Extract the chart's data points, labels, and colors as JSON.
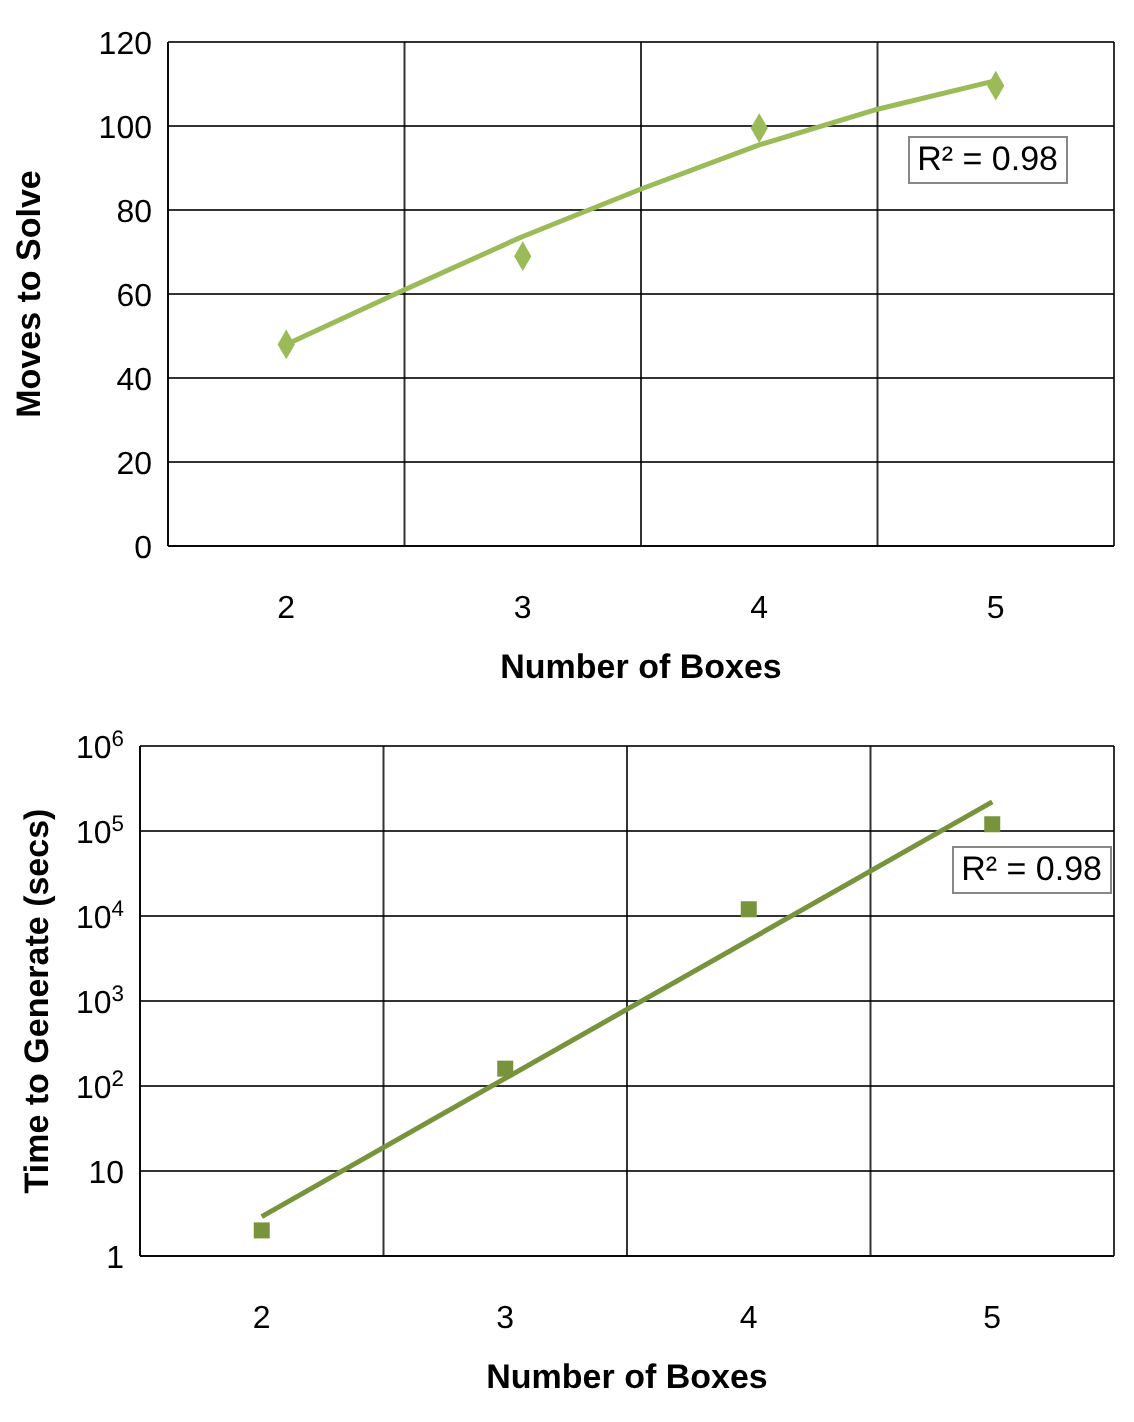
{
  "chart_data": [
    {
      "type": "scatter",
      "xlabel": "Number of Boxes",
      "ylabel": "Moves to Solve",
      "annotations": [
        "R² = 0.98"
      ],
      "marker": "diamond",
      "grid": true,
      "xlim": [
        1.5,
        5.5
      ],
      "xticks": [
        {
          "value": 1.5,
          "label": null
        },
        2,
        {
          "value": 2.5,
          "label": null
        },
        3,
        {
          "value": 3.5,
          "label": null
        },
        4,
        {
          "value": 4.5,
          "label": null
        },
        5,
        {
          "value": 5.5,
          "label": null
        }
      ],
      "ylim": [
        0,
        120
      ],
      "yticks": [
        0,
        20,
        40,
        60,
        80,
        100,
        120
      ],
      "series": [
        {
          "color": "#9bbb59",
          "x": [
            2,
            3,
            4,
            5
          ],
          "values": [
            48,
            69,
            99.5,
            109.6
          ]
        },
        {
          "type": "line",
          "marker": "none",
          "color": "#9bbb59",
          "x": [
            2,
            2.5,
            3,
            3.5,
            4,
            4.5,
            5
          ],
          "values": [
            48,
            61,
            73.7,
            85,
            95.5,
            104,
            110.8
          ]
        }
      ]
    },
    {
      "type": "scatter",
      "xlabel": "Number of Boxes",
      "ylabel": "Time to Generate (secs)",
      "annotations": [
        "R² = 0.98"
      ],
      "marker": "square",
      "grid": true,
      "log": "y",
      "xlim": [
        1.5,
        5.5
      ],
      "xticks": [
        {
          "value": 1.5,
          "label": null
        },
        2,
        {
          "value": 2.5,
          "label": null
        },
        3,
        {
          "value": 3.5,
          "label": null
        },
        4,
        {
          "value": 4.5,
          "label": null
        },
        5,
        {
          "value": 5.5,
          "label": null
        }
      ],
      "ylim": [
        1,
        1000000
      ],
      "yticks": [
        1,
        10,
        {
          "value": 100,
          "label": "10$^{2}$"
        },
        {
          "value": 1000,
          "label": "10$^{3}$"
        },
        {
          "value": 10000,
          "label": "10$^{4}$"
        },
        {
          "value": 100000,
          "label": "10$^{5}$"
        },
        {
          "value": 1000000,
          "label": "10$^{6}$"
        }
      ],
      "series": [
        {
          "color": "#77933c",
          "x": [
            2,
            3,
            4,
            5
          ],
          "values": [
            2,
            160,
            12000,
            120000
          ]
        },
        {
          "type": "line",
          "marker": "none",
          "color": "#77933c",
          "x": [
            2,
            5
          ],
          "values": [
            2.9,
            220000
          ]
        }
      ]
    }
  ]
}
